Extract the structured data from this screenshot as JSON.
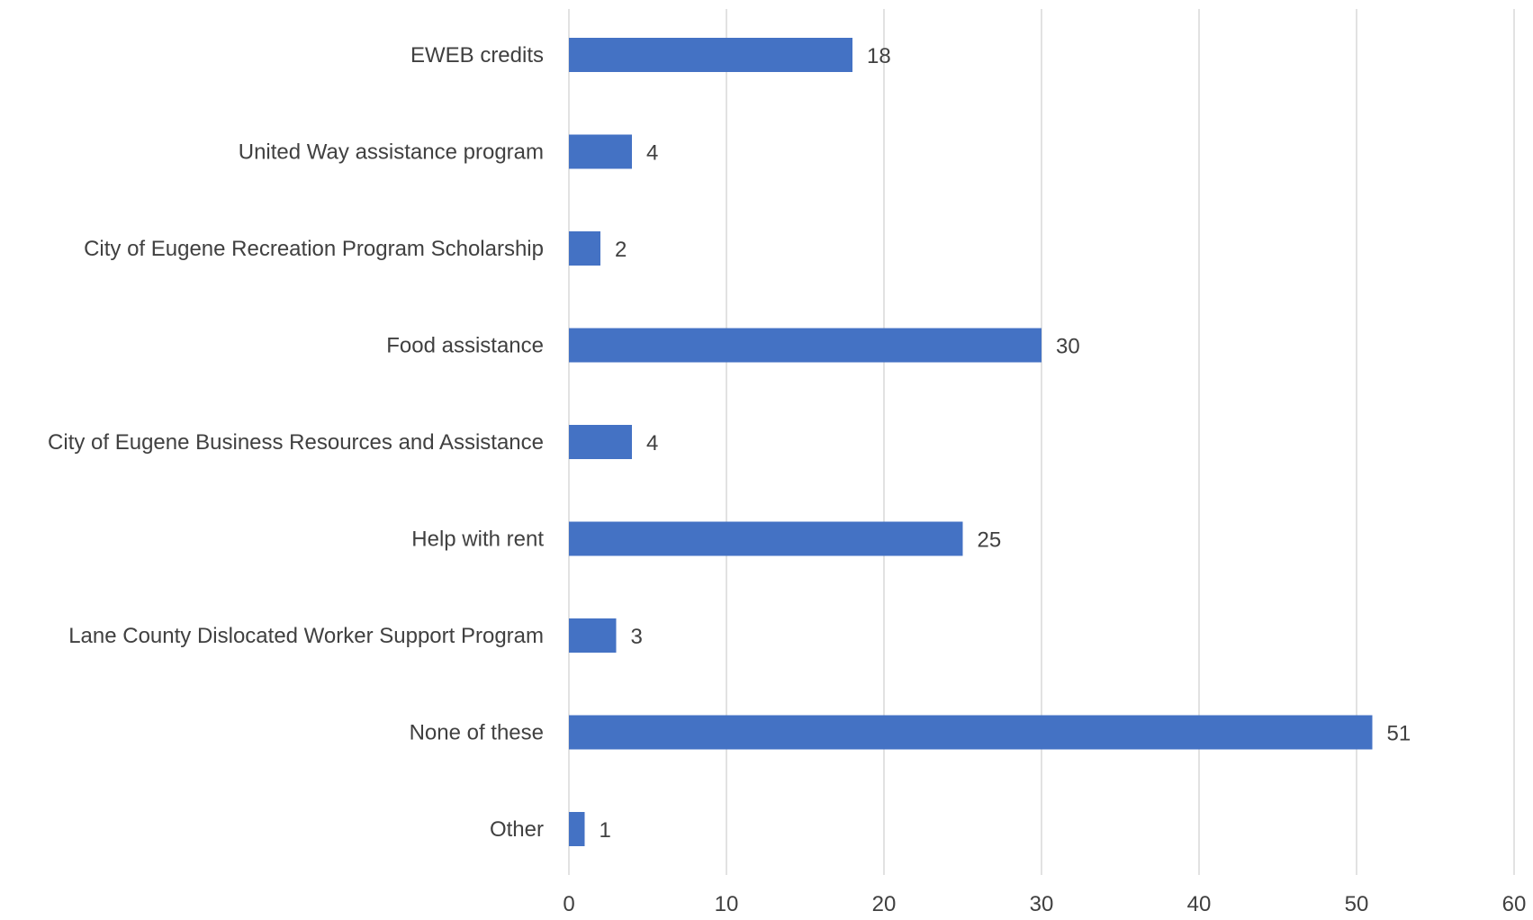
{
  "chart_data": {
    "type": "bar",
    "orientation": "horizontal",
    "categories": [
      "EWEB credits",
      "United Way assistance program",
      "City of Eugene Recreation Program Scholarship",
      "Food assistance",
      "City of Eugene Business Resources and Assistance",
      "Help with rent",
      "Lane County Dislocated Worker Support Program",
      "None of these",
      "Other"
    ],
    "values": [
      18,
      4,
      2,
      30,
      4,
      25,
      3,
      51,
      1
    ],
    "title": "",
    "xlabel": "",
    "ylabel": "",
    "xlim": [
      0,
      60
    ],
    "xticks": [
      0,
      10,
      20,
      30,
      40,
      50,
      60
    ],
    "grid": "vertical",
    "legend": "none",
    "bar_color": "#4472c4",
    "data_labels": true
  }
}
